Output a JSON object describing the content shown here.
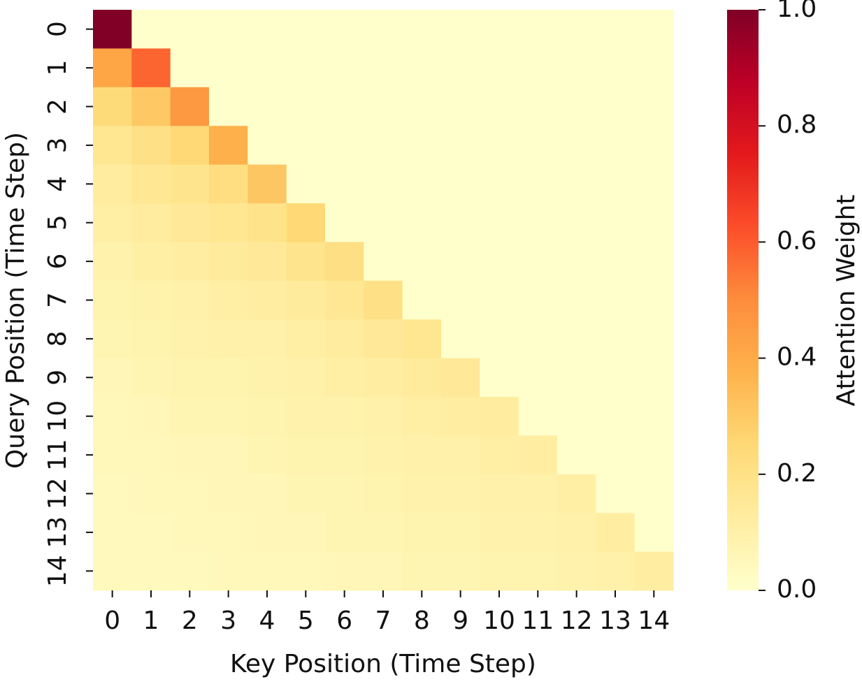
{
  "chart_data": {
    "type": "heatmap",
    "x_label": "Key Position (Time Step)",
    "y_label": "Query Position (Time Step)",
    "colorbar_label": "Attention Weight",
    "x_categories": [
      "0",
      "1",
      "2",
      "3",
      "4",
      "5",
      "6",
      "7",
      "8",
      "9",
      "10",
      "11",
      "12",
      "13",
      "14"
    ],
    "y_categories": [
      "0",
      "1",
      "2",
      "3",
      "4",
      "5",
      "6",
      "7",
      "8",
      "9",
      "10",
      "11",
      "12",
      "13",
      "14"
    ],
    "colormap": [
      "#ffffcc",
      "#ffeda0",
      "#fed976",
      "#feb24c",
      "#fd8d3c",
      "#fc4e2a",
      "#e31a1c",
      "#bd0026",
      "#800026"
    ],
    "clim": [
      0,
      1
    ],
    "cticks": [
      {
        "value": 0,
        "label": "0.0"
      },
      {
        "value": 0.2,
        "label": "0.2"
      },
      {
        "value": 0.4,
        "label": "0.4"
      },
      {
        "value": 0.6,
        "label": "0.6"
      },
      {
        "value": 0.8,
        "label": "0.8"
      },
      {
        "value": 1,
        "label": "1.0"
      }
    ],
    "z": [
      [
        1.0,
        0,
        0,
        0,
        0,
        0,
        0,
        0,
        0,
        0,
        0,
        0,
        0,
        0,
        0
      ],
      [
        0.42,
        0.58,
        0,
        0,
        0,
        0,
        0,
        0,
        0,
        0,
        0,
        0,
        0,
        0,
        0
      ],
      [
        0.24,
        0.3,
        0.46,
        0,
        0,
        0,
        0,
        0,
        0,
        0,
        0,
        0,
        0,
        0,
        0
      ],
      [
        0.17,
        0.2,
        0.25,
        0.38,
        0,
        0,
        0,
        0,
        0,
        0,
        0,
        0,
        0,
        0,
        0
      ],
      [
        0.13,
        0.16,
        0.18,
        0.22,
        0.31,
        0,
        0,
        0,
        0,
        0,
        0,
        0,
        0,
        0,
        0
      ],
      [
        0.11,
        0.13,
        0.15,
        0.17,
        0.19,
        0.25,
        0,
        0,
        0,
        0,
        0,
        0,
        0,
        0,
        0
      ],
      [
        0.09,
        0.11,
        0.12,
        0.14,
        0.15,
        0.18,
        0.21,
        0,
        0,
        0,
        0,
        0,
        0,
        0,
        0
      ],
      [
        0.08,
        0.09,
        0.1,
        0.11,
        0.12,
        0.14,
        0.16,
        0.2,
        0,
        0,
        0,
        0,
        0,
        0,
        0
      ],
      [
        0.07,
        0.08,
        0.09,
        0.1,
        0.1,
        0.11,
        0.13,
        0.15,
        0.17,
        0,
        0,
        0,
        0,
        0,
        0
      ],
      [
        0.06,
        0.07,
        0.08,
        0.08,
        0.09,
        0.1,
        0.11,
        0.12,
        0.14,
        0.15,
        0,
        0,
        0,
        0,
        0
      ],
      [
        0.05,
        0.06,
        0.07,
        0.07,
        0.08,
        0.09,
        0.09,
        0.1,
        0.11,
        0.12,
        0.13,
        0,
        0,
        0,
        0
      ],
      [
        0.05,
        0.05,
        0.06,
        0.06,
        0.07,
        0.08,
        0.08,
        0.09,
        0.1,
        0.1,
        0.11,
        0.12,
        0,
        0,
        0
      ],
      [
        0.04,
        0.05,
        0.05,
        0.06,
        0.06,
        0.07,
        0.07,
        0.08,
        0.09,
        0.09,
        0.1,
        0.1,
        0.11,
        0,
        0
      ],
      [
        0.04,
        0.04,
        0.05,
        0.05,
        0.06,
        0.06,
        0.07,
        0.07,
        0.08,
        0.08,
        0.09,
        0.09,
        0.1,
        0.12,
        0
      ],
      [
        0.04,
        0.04,
        0.04,
        0.05,
        0.05,
        0.05,
        0.06,
        0.06,
        0.07,
        0.07,
        0.08,
        0.08,
        0.09,
        0.1,
        0.12
      ]
    ]
  }
}
